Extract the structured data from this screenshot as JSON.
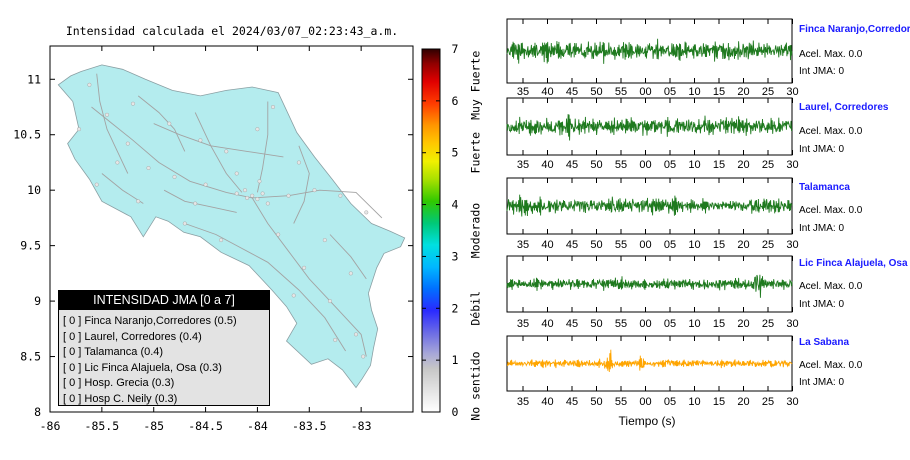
{
  "map": {
    "title": "Intensidad calculada el 2024/03/07_02:23:43_a.m.",
    "x_ticks": [
      "-86",
      "-85.5",
      "-85",
      "-84.5",
      "-84",
      "-83.5",
      "-83"
    ],
    "y_ticks": [
      "11",
      "10.5",
      "10",
      "9.5",
      "9",
      "8.5",
      "8"
    ],
    "xlim": [
      -86,
      -82.5
    ],
    "ylim": [
      8,
      11.3
    ],
    "land_color": "#b4ecee"
  },
  "colorbar": {
    "ticks": [
      "0",
      "1",
      "2",
      "3",
      "4",
      "5",
      "6",
      "7"
    ],
    "labels": [
      "No sentido",
      "Débil",
      "Moderado",
      "Fuerte",
      "Muy Fuerte"
    ]
  },
  "legend": {
    "title": "INTENSIDAD JMA [0 a 7]",
    "items": [
      "[ 0 ] Finca Naranjo,Corredores (0.5)",
      "[ 0 ] Laurel, Corredores (0.4)",
      "[ 0 ] Talamanca (0.4)",
      "[ 0 ] Lic Finca Alajuela, Osa (0.3)",
      "[ 0 ] Hosp. Grecia (0.3)",
      "[ 0 ] Hosp C. Neily (0.3)"
    ]
  },
  "chart_data": {
    "type": "line",
    "xlabel": "Tiempo (s)",
    "x_tick_labels": [
      "35",
      "40",
      "45",
      "50",
      "55",
      "00",
      "05",
      "10",
      "15",
      "20",
      "25",
      "30"
    ],
    "series": [
      {
        "name": "Finca Naranjo,Corredor",
        "accel_label": "Acel. Max. 0.0",
        "int_label": "Int JMA: 0",
        "color": "#1f7a1f"
      },
      {
        "name": "Laurel, Corredores",
        "accel_label": "Acel. Max. 0.0",
        "int_label": "Int JMA: 0",
        "color": "#1f7a1f"
      },
      {
        "name": "Talamanca",
        "accel_label": "Acel. Max. 0.0",
        "int_label": "Int JMA: 0",
        "color": "#1f7a1f"
      },
      {
        "name": "Lic Finca Alajuela, Osa",
        "accel_label": "Acel. Max. 0.0",
        "int_label": "Int JMA: 0",
        "color": "#1f7a1f"
      },
      {
        "name": "La Sabana",
        "accel_label": "Acel. Max. 0.0",
        "int_label": "Int JMA: 0",
        "color": "#ffa500"
      }
    ]
  }
}
